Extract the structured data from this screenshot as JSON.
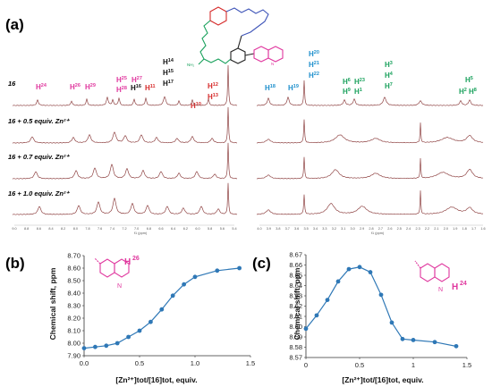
{
  "panel_a": {
    "tag": "(a)",
    "traces": [
      {
        "label": "16",
        "color": "#7b3636"
      },
      {
        "label": "16 + 0.5 equiv. Zn²⁺",
        "color": "#8f4343"
      },
      {
        "label": "16 + 0.7 equiv. Zn²⁺",
        "color": "#8f4343"
      },
      {
        "label": "16 + 1.0 equiv. Zn²⁺",
        "color": "#8f4343"
      }
    ],
    "left_axis_ticks": [
      "9.0",
      "8.8",
      "8.6",
      "8.4",
      "8.2",
      "8.0",
      "7.8",
      "7.6",
      "7.4",
      "7.2",
      "7.0",
      "6.8",
      "6.6",
      "6.4",
      "6.2",
      "6.0",
      "5.8",
      "5.6",
      "5.4"
    ],
    "left_axis_unit": "f1 (ppm)",
    "right_axis_ticks": [
      "4.0",
      "3.9",
      "3.8",
      "3.7",
      "3.6",
      "3.5",
      "3.4",
      "3.3",
      "3.2",
      "3.1",
      "3.0",
      "2.9",
      "2.8",
      "2.7",
      "2.6",
      "2.5",
      "2.4",
      "2.3",
      "2.2",
      "2.1",
      "2.0",
      "1.9",
      "1.8",
      "1.7",
      "1.6"
    ],
    "right_axis_unit": "f1 (ppm)",
    "proton_labels": [
      {
        "h": "H",
        "n": "24",
        "color": "#e0379e"
      },
      {
        "h": "H",
        "n": "26",
        "color": "#e0379e"
      },
      {
        "h": "H",
        "n": "29",
        "color": "#e0379e"
      },
      {
        "h": "H",
        "n": "25",
        "color": "#e0379e"
      },
      {
        "h": "H",
        "n": "28",
        "color": "#e0379e"
      },
      {
        "h": "H",
        "n": "27",
        "color": "#e0379e"
      },
      {
        "h": "H",
        "n": "16",
        "color": "#111111"
      },
      {
        "h": "H",
        "n": "11",
        "color": "#d62a2a"
      },
      {
        "h": "H",
        "n": "14",
        "color": "#111111"
      },
      {
        "h": "H",
        "n": "15",
        "color": "#111111"
      },
      {
        "h": "H",
        "n": "17",
        "color": "#111111"
      },
      {
        "h": "H",
        "n": "10",
        "color": "#d62a2a"
      },
      {
        "h": "H",
        "n": "12",
        "color": "#d62a2a"
      },
      {
        "h": "H",
        "n": "13",
        "color": "#d62a2a"
      },
      {
        "h": "H",
        "n": "18",
        "color": "#1c8fcc"
      },
      {
        "h": "H",
        "n": "19",
        "color": "#1c8fcc"
      },
      {
        "h": "H",
        "n": "20",
        "color": "#1c8fcc"
      },
      {
        "h": "H",
        "n": "21",
        "color": "#1c8fcc"
      },
      {
        "h": "H",
        "n": "22",
        "color": "#1c8fcc"
      },
      {
        "h": "H",
        "n": "6",
        "color": "#19a15c"
      },
      {
        "h": "H",
        "n": "23",
        "color": "#19a15c"
      },
      {
        "h": "H",
        "n": "9",
        "color": "#19a15c"
      },
      {
        "h": "H",
        "n": "1",
        "color": "#19a15c"
      },
      {
        "h": "H",
        "n": "3",
        "color": "#19a15c"
      },
      {
        "h": "H",
        "n": "4",
        "color": "#19a15c"
      },
      {
        "h": "H",
        "n": "7",
        "color": "#19a15c"
      },
      {
        "h": "H",
        "n": "5",
        "color": "#19a15c"
      },
      {
        "h": "H",
        "n": "2",
        "color": "#19a15c"
      },
      {
        "h": "H",
        "n": "8",
        "color": "#19a15c"
      }
    ],
    "structure_atom_labels": [
      "NH₂",
      "N"
    ],
    "colors": {
      "pink": "#e0379e",
      "red": "#d62a2a",
      "blue": "#1c8fcc",
      "green": "#19a15c",
      "black": "#111111",
      "spectrum": "#8f4343"
    }
  },
  "chart_data": [
    {
      "type": "line",
      "tag": "(b)",
      "inset_label_h": "H",
      "inset_label_n": "26",
      "inset_atom": "N",
      "color": "#2f78b6",
      "xlabel": "[Zn²⁺]tot/[16]tot, equiv.",
      "ylabel": "Chemical shift, ppm",
      "xlim": [
        0,
        1.5
      ],
      "ylim": [
        7.9,
        8.7
      ],
      "xticks": [
        0,
        0.5,
        1,
        1.5
      ],
      "xtick_labels": [
        "0.0",
        "0.5",
        "1.0",
        "1.5"
      ],
      "yticks": [
        7.9,
        8.0,
        8.1,
        8.2,
        8.3,
        8.4,
        8.5,
        8.6,
        8.7
      ],
      "ytick_labels": [
        "7.90",
        "8.00",
        "8.10",
        "8.20",
        "8.30",
        "8.40",
        "8.50",
        "8.60",
        "8.70"
      ],
      "x": [
        0,
        0.1,
        0.2,
        0.3,
        0.4,
        0.5,
        0.6,
        0.7,
        0.8,
        0.9,
        1.0,
        1.2,
        1.4
      ],
      "y": [
        7.96,
        7.97,
        7.98,
        8.0,
        8.05,
        8.1,
        8.17,
        8.27,
        8.38,
        8.47,
        8.53,
        8.58,
        8.6
      ]
    },
    {
      "type": "line",
      "tag": "(c)",
      "inset_label_h": "H",
      "inset_label_n": "24",
      "inset_atom": "N",
      "color": "#2f78b6",
      "xlabel": "[Zn²⁺]tot/[16]tot, equiv.",
      "ylabel": "Chemical shift, ppm",
      "xlim": [
        0,
        1.5
      ],
      "ylim": [
        8.57,
        8.67
      ],
      "xticks": [
        0,
        0.5,
        1,
        1.5
      ],
      "xtick_labels": [
        "0",
        "0.5",
        "1",
        "1.5"
      ],
      "yticks": [
        8.57,
        8.58,
        8.59,
        8.6,
        8.61,
        8.62,
        8.63,
        8.64,
        8.65,
        8.66,
        8.67
      ],
      "ytick_labels": [
        "8.57",
        "8.58",
        "8.59",
        "8.60",
        "8.61",
        "8.62",
        "8.63",
        "8.64",
        "8.65",
        "8.66",
        "8.67"
      ],
      "x": [
        0,
        0.1,
        0.2,
        0.3,
        0.4,
        0.5,
        0.6,
        0.7,
        0.8,
        0.9,
        1.0,
        1.2,
        1.4
      ],
      "y": [
        8.598,
        8.611,
        8.626,
        8.644,
        8.656,
        8.658,
        8.653,
        8.631,
        8.604,
        8.588,
        8.587,
        8.585,
        8.581
      ]
    }
  ]
}
